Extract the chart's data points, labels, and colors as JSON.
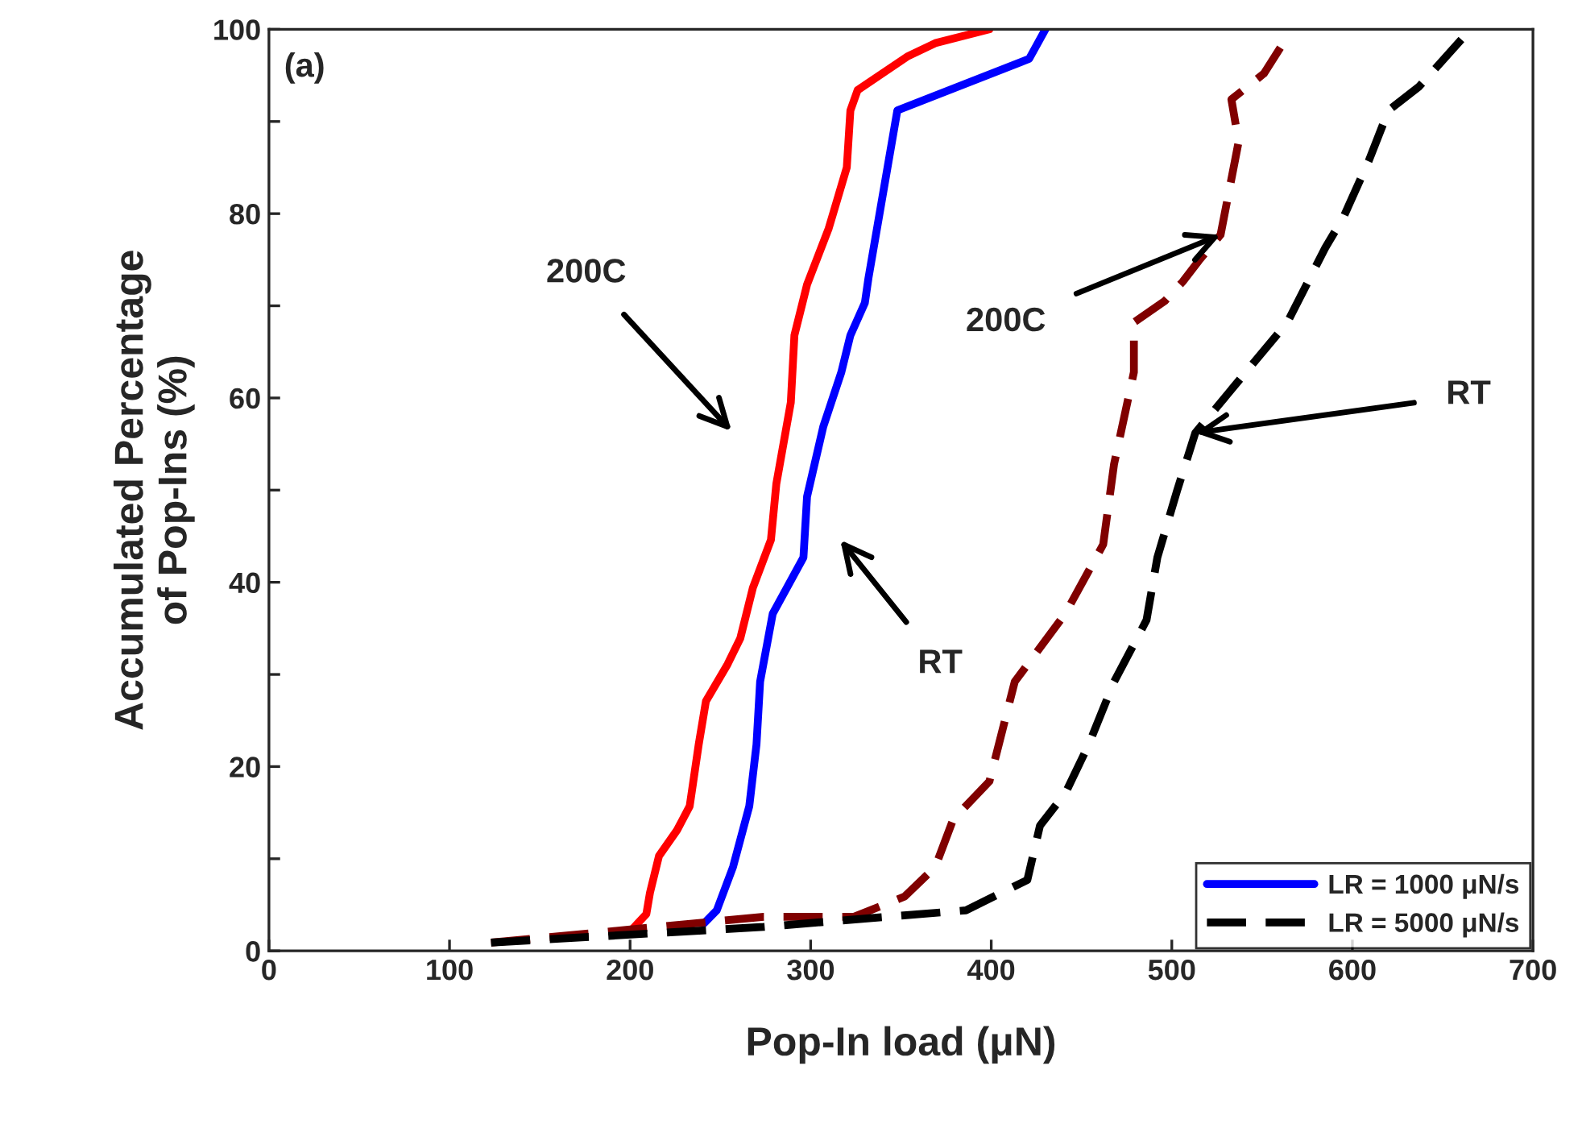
{
  "chart_data": {
    "type": "line",
    "xlabel": "Pop-In load (μN)",
    "ylabel": "Accumulated Percentage\nof Pop-Ins (%)",
    "xlim": [
      0,
      700
    ],
    "xticks": [
      0,
      100,
      200,
      300,
      400,
      500,
      600,
      700
    ],
    "ylim": [
      0,
      100
    ],
    "yticks": [
      0,
      {
        "value": 10,
        "label": null
      },
      20,
      {
        "value": 30,
        "label": null
      },
      40,
      {
        "value": 50,
        "label": null
      },
      60,
      {
        "value": 70,
        "label": null
      },
      80,
      {
        "value": 90,
        "label": null
      },
      100
    ],
    "grid": false,
    "legend": "bottom right",
    "marker": "none",
    "series": [
      {
        "color": "#ff0000",
        "line_style": "solid",
        "x": [
          199,
          209,
          211,
          216,
          226,
          233,
          238,
          242,
          254,
          261,
          268,
          278,
          281,
          289,
          291,
          298,
          310,
          320,
          322,
          326,
          354,
          369,
          399
        ],
        "values": [
          1.9,
          4.0,
          6.3,
          10.3,
          13.1,
          15.7,
          22.4,
          27.1,
          31.1,
          33.9,
          39.4,
          44.6,
          50.7,
          59.5,
          66.8,
          72.3,
          78.4,
          85.0,
          91.2,
          93.4,
          97.1,
          98.5,
          100
        ]
      },
      {
        "name": "LR = 1000 μN/s",
        "color": "#0000ff",
        "line_style": "solid",
        "x": [
          241,
          248,
          257,
          266,
          270,
          272,
          279,
          296,
          298,
          307,
          317,
          322,
          330,
          332,
          348,
          421,
          430
        ],
        "values": [
          3.0,
          4.4,
          9.1,
          15.7,
          22.4,
          29.2,
          36.6,
          42.7,
          49.3,
          56.9,
          62.8,
          66.8,
          70.3,
          73.0,
          91.2,
          96.8,
          100
        ]
      },
      {
        "color": "#800000",
        "line_style": "dashed",
        "x": [
          123,
          199,
          274,
          324,
          352,
          369,
          379,
          399,
          413,
          441,
          462,
          468,
          479,
          479,
          496,
          506,
          515,
          527,
          537,
          533,
          551,
          564,
          564
        ],
        "values": [
          0.9,
          2.3,
          3.7,
          3.7,
          5.9,
          9.1,
          14.3,
          18.4,
          29.2,
          36.6,
          44.1,
          52.8,
          62.8,
          68.2,
          70.5,
          72.6,
          74.9,
          77.7,
          87.8,
          92.4,
          95.2,
          99.2,
          100
        ]
      },
      {
        "name": "LR = 5000 μN/s",
        "color": "#000000",
        "line_style": "dashed",
        "x": [
          123,
          274,
          386,
          420,
          427,
          441,
          454,
          468,
          486,
          492,
          503,
          513,
          544,
          564,
          585,
          595,
          609,
          620,
          637,
          665
        ],
        "values": [
          0.9,
          2.6,
          4.4,
          7.7,
          13.6,
          17.1,
          22.4,
          29.2,
          35.9,
          42.7,
          50.0,
          56.2,
          63.5,
          68.2,
          76.3,
          79.6,
          85.7,
          91.2,
          93.8,
          99.9
        ]
      }
    ],
    "annotations": [
      "(a)",
      "200C",
      "RT",
      {
        "text": "200C",
        "x": 527,
        "y": 77.7
      },
      {
        "text": "RT",
        "x": 513,
        "y": 56.2
      }
    ]
  }
}
